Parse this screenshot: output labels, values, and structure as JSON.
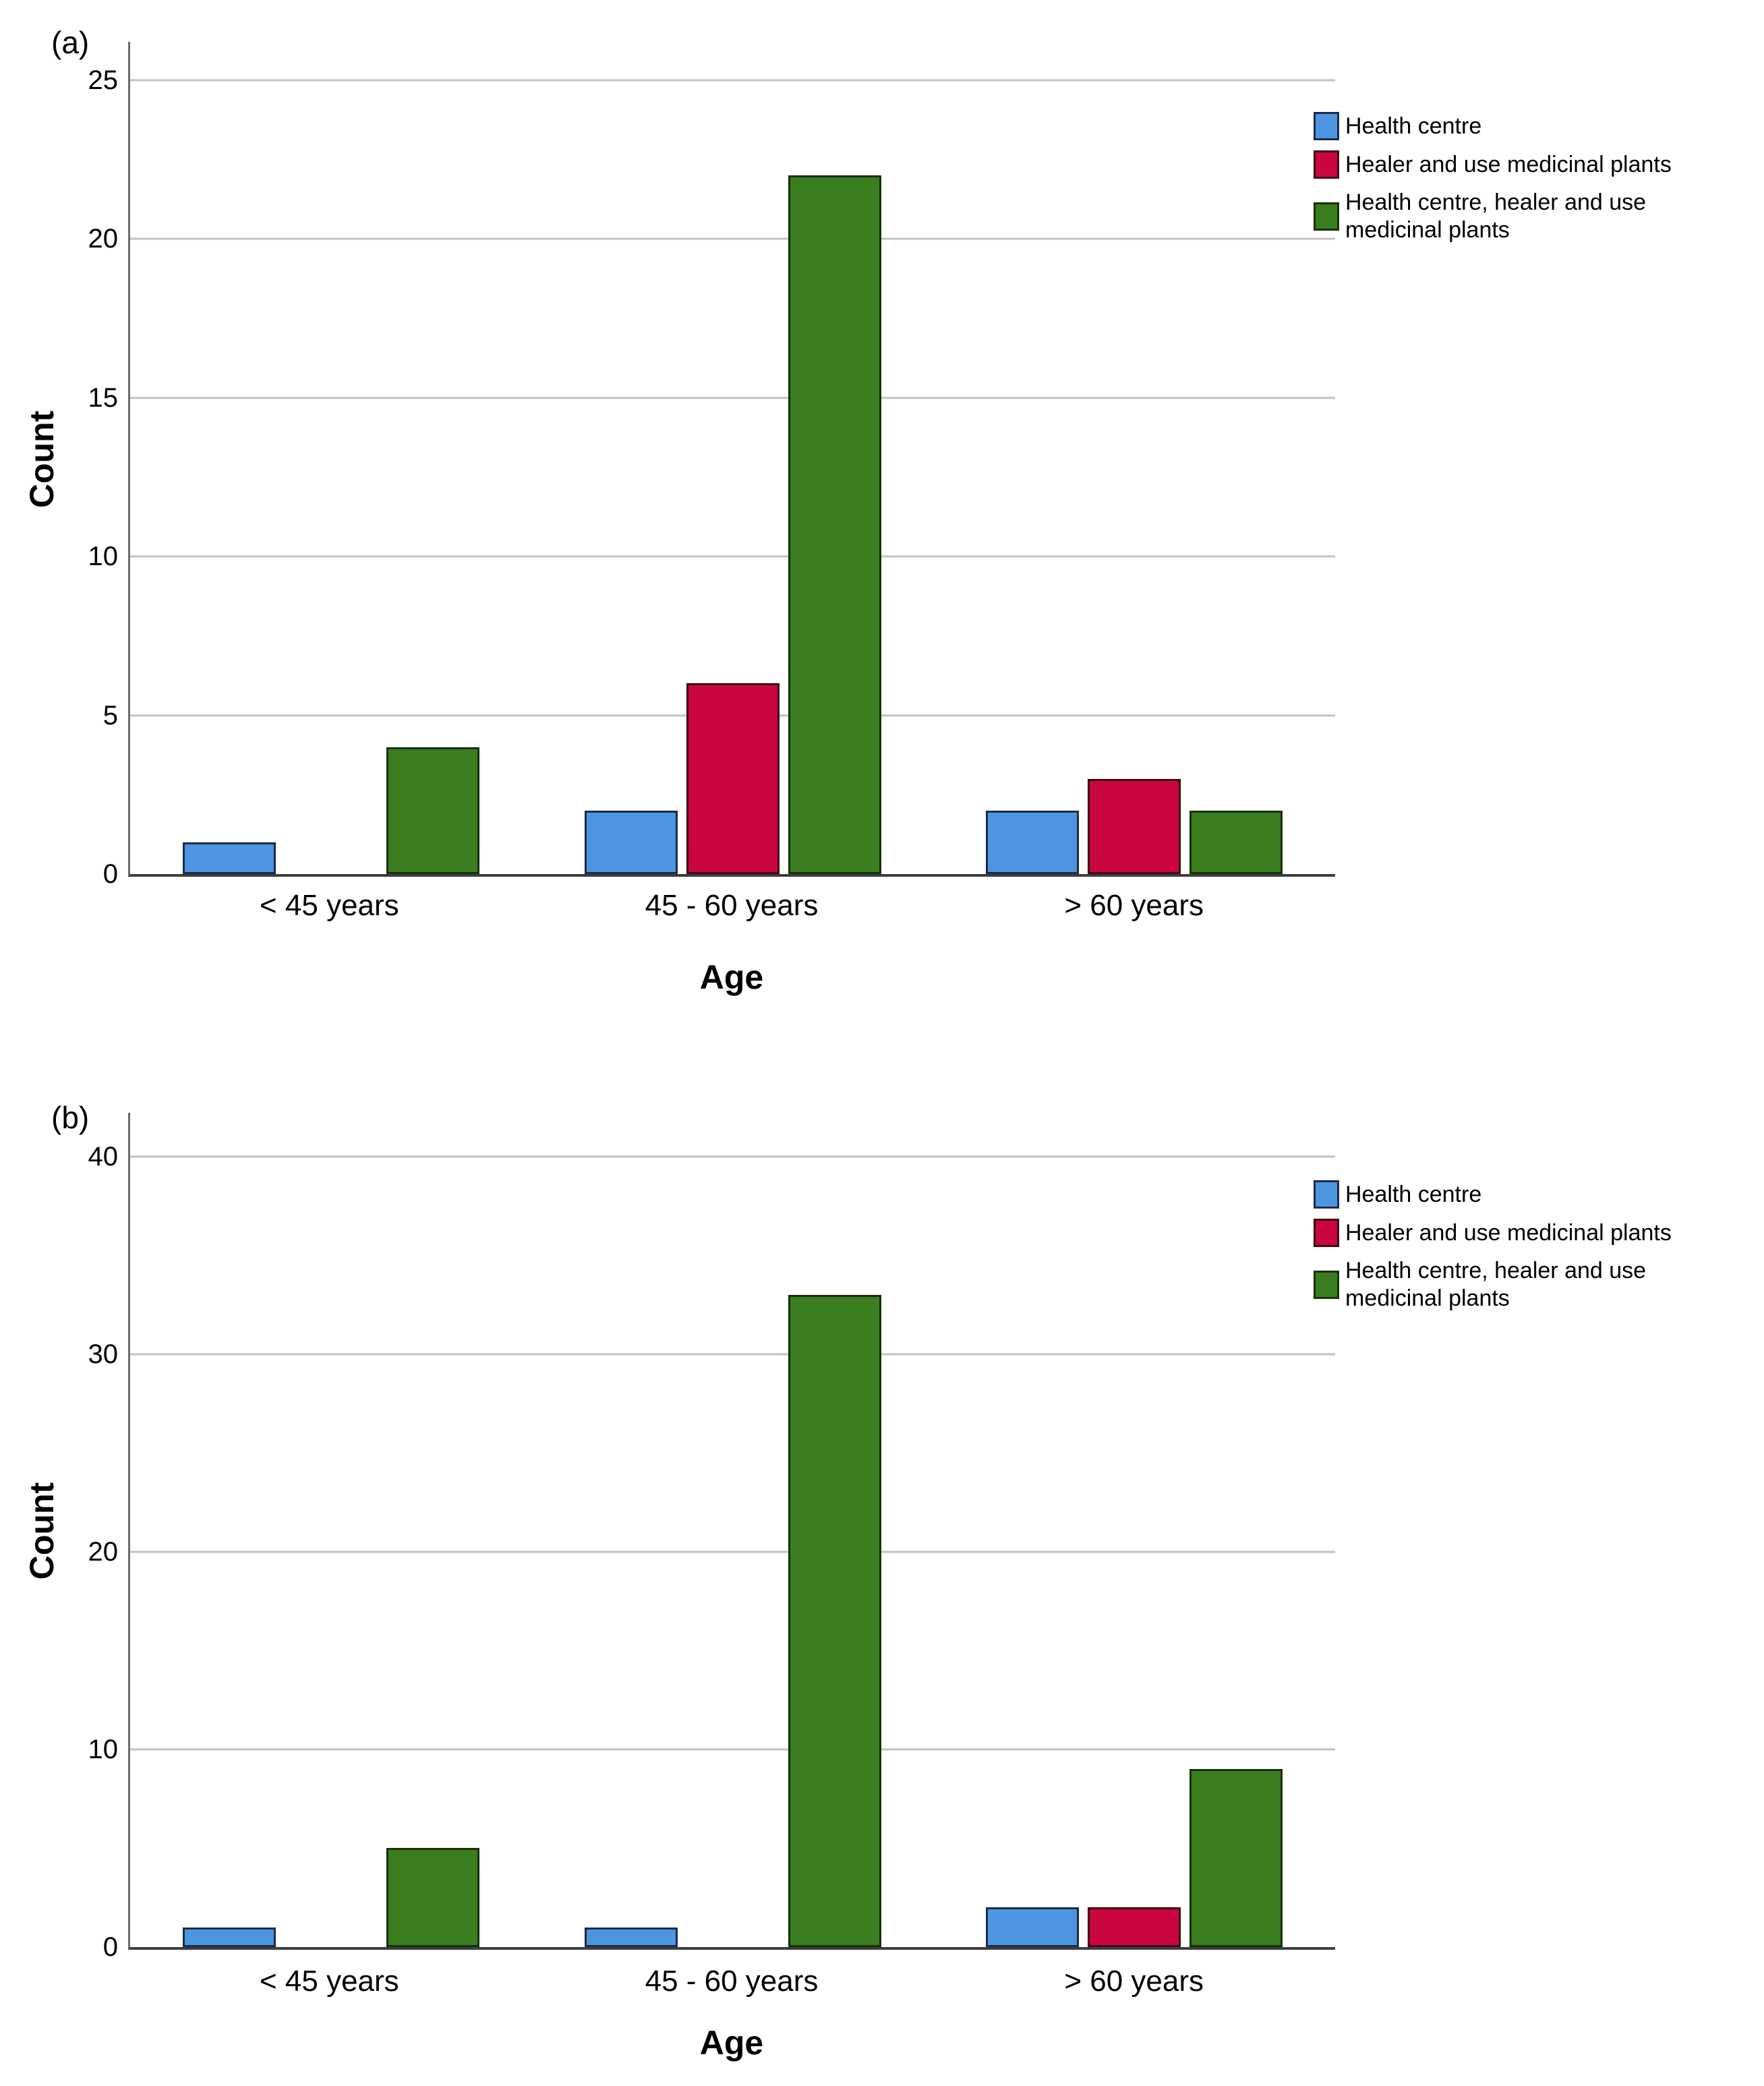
{
  "page": {
    "background": "#ffffff"
  },
  "colors": {
    "series_blue": "#4E95E1",
    "series_red": "#C9063F",
    "series_green": "#3A7D1E",
    "gridline": "#C2C2C2",
    "y_axis_line": "#6B6B6B",
    "baseline": "#3D3D3D",
    "text": "#000000"
  },
  "chart_data": [
    {
      "type": "bar",
      "panel_label": "(a)",
      "xlabel": "Age",
      "ylabel": "Count",
      "categories": [
        "< 45 years",
        "45 - 60 years",
        "> 60 years"
      ],
      "series": [
        {
          "name": "Health centre",
          "color": "#4E95E1",
          "values": [
            1,
            2,
            2
          ]
        },
        {
          "name": "Healer and use medicinal plants",
          "color": "#C9063F",
          "values": [
            null,
            6,
            3
          ]
        },
        {
          "name": "Health centre, healer and use medicinal plants",
          "color": "#3A7D1E",
          "values": [
            4,
            22,
            2
          ]
        }
      ],
      "axis": {
        "ymin": 0,
        "ymax": 25,
        "tick_step": 5,
        "ticks": [
          0,
          5,
          10,
          15,
          20,
          25
        ],
        "scale_max": 26.2,
        "grid": true
      },
      "legend_position": "right"
    },
    {
      "type": "bar",
      "panel_label": "(b)",
      "xlabel": "Age",
      "ylabel": "Count",
      "categories": [
        "< 45 years",
        "45 - 60 years",
        "> 60 years"
      ],
      "series": [
        {
          "name": "Health centre",
          "color": "#4E95E1",
          "values": [
            1,
            1,
            2
          ]
        },
        {
          "name": "Healer and use medicinal plants",
          "color": "#C9063F",
          "values": [
            null,
            null,
            2
          ]
        },
        {
          "name": "Health centre, healer and use medicinal plants",
          "color": "#3A7D1E",
          "values": [
            5,
            33,
            9
          ]
        }
      ],
      "axis": {
        "ymin": 0,
        "ymax": 40,
        "tick_step": 10,
        "ticks": [
          0,
          10,
          20,
          30,
          40
        ],
        "scale_max": 42.2,
        "grid": true
      },
      "legend_position": "right"
    }
  ]
}
